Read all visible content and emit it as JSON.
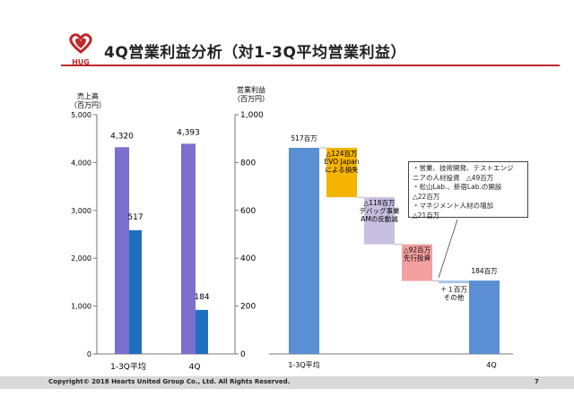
{
  "header": {
    "logo_text": "HUG",
    "title": "4Q営業利益分析（対1-3Q平均営業利益）"
  },
  "footer": {
    "copyright": "Copyright© 2018 Hearts United Group Co., Ltd. All Rights Reserved.",
    "page": "7"
  },
  "colors": {
    "accent_red": "#c0282c",
    "sales_bar": "#7b6fd0",
    "profit_bar": "#1f6fc0",
    "waterfall_total": "#5b8fd4",
    "evo": "#f5b400",
    "debug": "#c9bfe0",
    "advance": "#f4a0a0",
    "other": "#a9c4ea"
  },
  "chart_data": [
    {
      "type": "bar",
      "categories": [
        "1-3Q平均",
        "4Q"
      ],
      "series": [
        {
          "name": "売上高",
          "axis": "left",
          "values": [
            4320,
            4393
          ],
          "labels": [
            "4,320",
            "4,393"
          ]
        },
        {
          "name": "営業利益",
          "axis": "right",
          "values": [
            517,
            184
          ],
          "labels": [
            "517",
            "184"
          ]
        }
      ],
      "left_axis": {
        "label_line1": "売上高",
        "label_line2": "（百万円）",
        "ylim": [
          0,
          5000
        ],
        "ticks": [
          0,
          1000,
          2000,
          3000,
          4000,
          5000
        ],
        "tick_labels": [
          "0",
          "1,000",
          "2,000",
          "3,000",
          "4,000",
          "5,000"
        ]
      },
      "right_axis": {
        "label_line1": "営業利益",
        "label_line2": "（百万円）",
        "ylim": [
          0,
          1000
        ],
        "ticks": [
          0,
          200,
          400,
          600,
          800,
          1000
        ],
        "tick_labels": [
          "0",
          "200",
          "400",
          "600",
          "800",
          "1,000"
        ]
      }
    },
    {
      "type": "bar",
      "subtype": "waterfall",
      "ylim": [
        0,
        600
      ],
      "steps": [
        {
          "kind": "total",
          "value": 517,
          "label_lines": [
            "517百万"
          ],
          "color_key": "waterfall_total"
        },
        {
          "kind": "delta",
          "value": -124,
          "label_lines": [
            "△124百万",
            "EVO Japan",
            "による損失"
          ],
          "color_key": "evo"
        },
        {
          "kind": "delta",
          "value": -118,
          "label_lines": [
            "△118百万",
            "デバッグ事業",
            "AMの反動減"
          ],
          "color_key": "debug"
        },
        {
          "kind": "delta",
          "value": -92,
          "label_lines": [
            "△92百万",
            "先行投資"
          ],
          "color_key": "advance"
        },
        {
          "kind": "delta",
          "value": 1,
          "label_lines": [
            "＋１百万",
            "その他"
          ],
          "color_key": "other"
        },
        {
          "kind": "total",
          "value": 184,
          "label_lines": [
            "184百万"
          ],
          "color_key": "waterfall_total"
        }
      ],
      "x_labels": [
        "1-3Q平均",
        "4Q"
      ],
      "callout": [
        "・営業、技術開発、テストエンジ",
        "ニアの人材投資　△49百万",
        "・松山Lab.、新宿Lab.の開設",
        "△22百万",
        "・マネジメント人材の増加",
        "△21百万"
      ]
    }
  ]
}
